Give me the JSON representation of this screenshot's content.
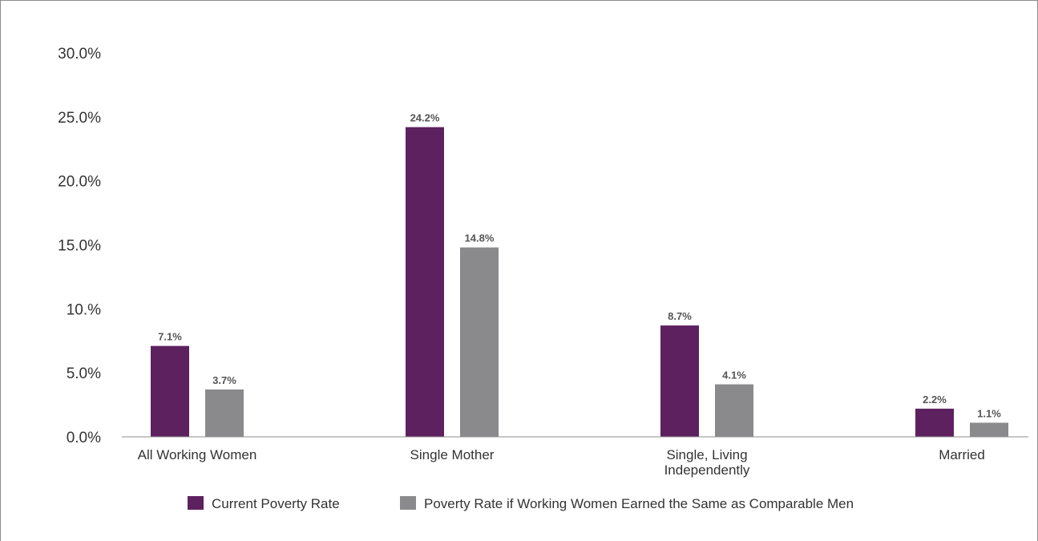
{
  "chart_data": {
    "type": "bar",
    "title": "",
    "xlabel": "",
    "ylabel": "",
    "ylim": [
      0,
      30
    ],
    "y_ticks": [
      "0.0%",
      "5.0%",
      "10.%",
      "15.0%",
      "20.0%",
      "25.0%",
      "30.0%"
    ],
    "y_tick_values": [
      0,
      5,
      10,
      15,
      20,
      25,
      30
    ],
    "grid": false,
    "legend_position": "bottom",
    "categories": [
      [
        "All Working Women"
      ],
      [
        "Single Mother"
      ],
      [
        "Single, Living",
        "Independently"
      ],
      [
        "Married"
      ]
    ],
    "series": [
      {
        "name": "Current Poverty Rate",
        "color": "#5e2160",
        "values": [
          7.1,
          24.2,
          8.7,
          2.2
        ],
        "labels": [
          "7.1%",
          "24.2%",
          "8.7%",
          "2.2%"
        ]
      },
      {
        "name": "Poverty Rate if Working Women Earned the Same as Comparable Men",
        "color": "#8a898c",
        "values": [
          3.7,
          14.8,
          4.1,
          1.1
        ],
        "labels": [
          "3.7%",
          "14.8%",
          "4.1%",
          "1.1%"
        ]
      }
    ]
  }
}
